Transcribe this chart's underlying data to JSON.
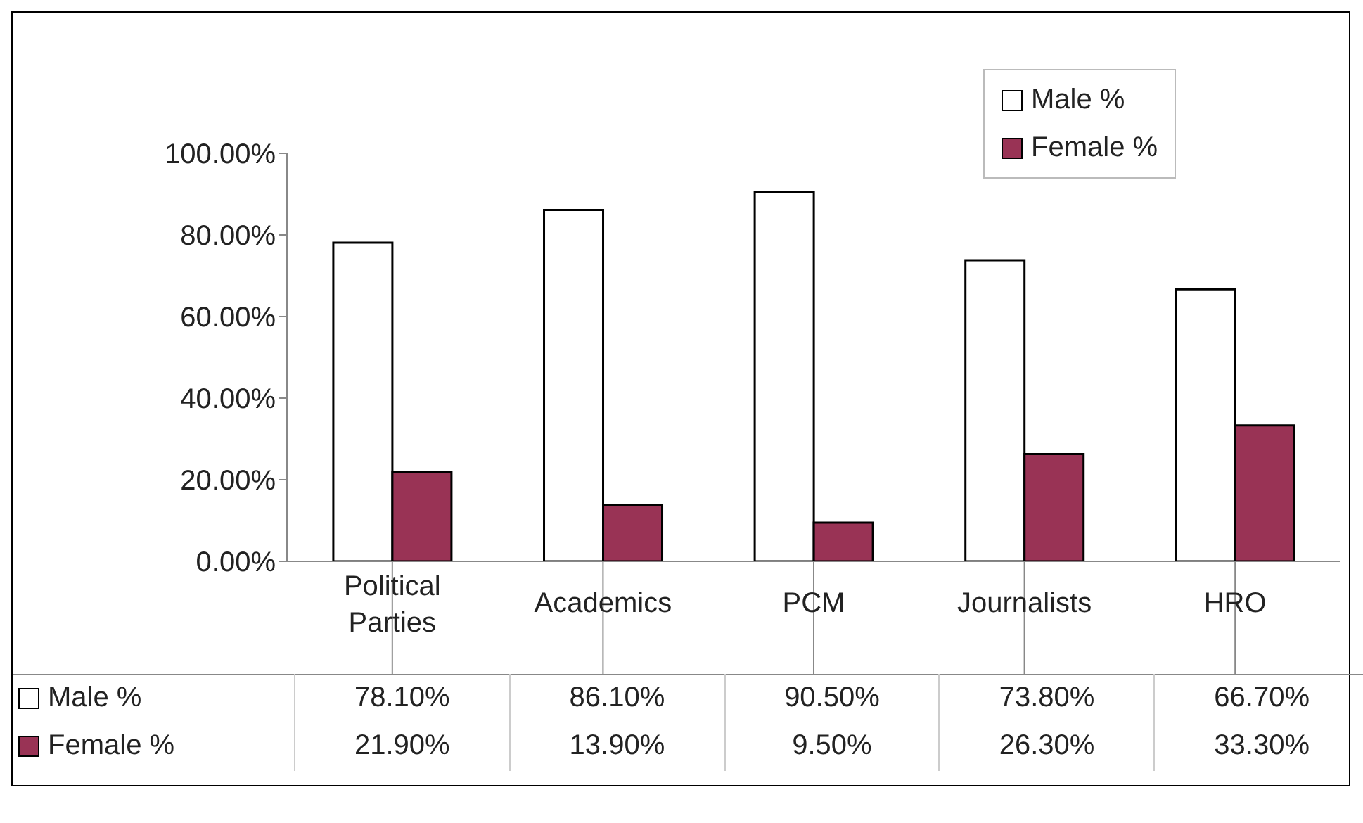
{
  "chart_data": {
    "type": "bar",
    "categories": [
      "Political Parties",
      "Academics",
      "PCM",
      "Journalists",
      "HRO"
    ],
    "series": [
      {
        "name": "Male %",
        "color": "#ffffff",
        "values": [
          78.1,
          86.1,
          90.5,
          73.8,
          66.7
        ],
        "value_labels": [
          "78.10%",
          "86.10%",
          "90.50%",
          "73.80%",
          "66.70%"
        ]
      },
      {
        "name": "Female %",
        "color": "#993355",
        "values": [
          21.9,
          13.9,
          9.5,
          26.3,
          33.3
        ],
        "value_labels": [
          "21.90%",
          "13.90%",
          "9.50%",
          "26.30%",
          "33.30%"
        ]
      }
    ],
    "ylim": [
      0,
      100
    ],
    "yticks": [
      {
        "value": 0,
        "label": "0.00%"
      },
      {
        "value": 20,
        "label": "20.00%"
      },
      {
        "value": 40,
        "label": "40.00%"
      },
      {
        "value": 60,
        "label": "60.00%"
      },
      {
        "value": 80,
        "label": "80.00%"
      },
      {
        "value": 100,
        "label": "100.00%"
      }
    ],
    "grid": false,
    "legend": "top right"
  }
}
